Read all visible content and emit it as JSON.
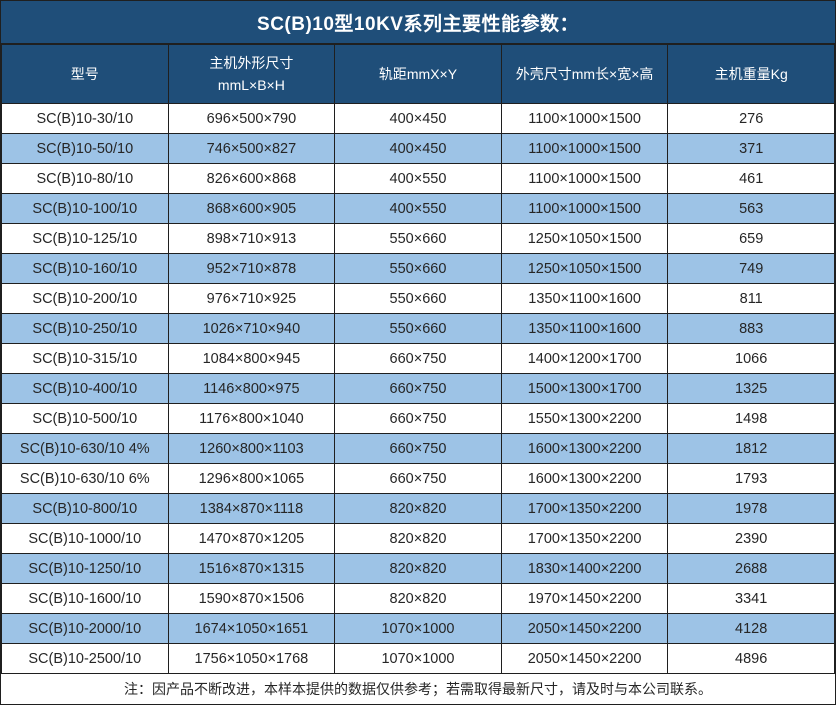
{
  "title": "SC(B)10型10KV系列主要性能参数：",
  "note": "注：因产品不断改进，本样本提供的数据仅供参考；若需取得最新尺寸，请及时与本公司联系。",
  "colors": {
    "header_bg": "#1F4E79",
    "header_text": "#FFFFFF",
    "row_bg": "#FFFFFF",
    "row_alt_bg": "#9DC3E6",
    "border": "#1F1F1F",
    "cell_text": "#262626"
  },
  "table": {
    "columns": [
      {
        "label": "型号"
      },
      {
        "label": "主机外形尺寸\nmmL×B×H"
      },
      {
        "label": "轨距mmX×Y"
      },
      {
        "label": "外壳尺寸mm长×宽×高"
      },
      {
        "label": "主机重量Kg"
      }
    ],
    "rows": [
      [
        "SC(B)10-30/10",
        "696×500×790",
        "400×450",
        "1100×1000×1500",
        "276"
      ],
      [
        "SC(B)10-50/10",
        "746×500×827",
        "400×450",
        "1100×1000×1500",
        "371"
      ],
      [
        "SC(B)10-80/10",
        "826×600×868",
        "400×550",
        "1100×1000×1500",
        "461"
      ],
      [
        "SC(B)10-100/10",
        "868×600×905",
        "400×550",
        "1100×1000×1500",
        "563"
      ],
      [
        "SC(B)10-125/10",
        "898×710×913",
        "550×660",
        "1250×1050×1500",
        "659"
      ],
      [
        "SC(B)10-160/10",
        "952×710×878",
        "550×660",
        "1250×1050×1500",
        "749"
      ],
      [
        "SC(B)10-200/10",
        "976×710×925",
        "550×660",
        "1350×1100×1600",
        "811"
      ],
      [
        "SC(B)10-250/10",
        "1026×710×940",
        "550×660",
        "1350×1100×1600",
        "883"
      ],
      [
        "SC(B)10-315/10",
        "1084×800×945",
        "660×750",
        "1400×1200×1700",
        "1066"
      ],
      [
        "SC(B)10-400/10",
        "1146×800×975",
        "660×750",
        "1500×1300×1700",
        "1325"
      ],
      [
        "SC(B)10-500/10",
        "1176×800×1040",
        "660×750",
        "1550×1300×2200",
        "1498"
      ],
      [
        "SC(B)10-630/10 4%",
        "1260×800×1103",
        "660×750",
        "1600×1300×2200",
        "1812"
      ],
      [
        "SC(B)10-630/10 6%",
        "1296×800×1065",
        "660×750",
        "1600×1300×2200",
        "1793"
      ],
      [
        "SC(B)10-800/10",
        "1384×870×1118",
        "820×820",
        "1700×1350×2200",
        "1978"
      ],
      [
        "SC(B)10-1000/10",
        "1470×870×1205",
        "820×820",
        "1700×1350×2200",
        "2390"
      ],
      [
        "SC(B)10-1250/10",
        "1516×870×1315",
        "820×820",
        "1830×1400×2200",
        "2688"
      ],
      [
        "SC(B)10-1600/10",
        "1590×870×1506",
        "820×820",
        "1970×1450×2200",
        "3341"
      ],
      [
        "SC(B)10-2000/10",
        "1674×1050×1651",
        "1070×1000",
        "2050×1450×2200",
        "4128"
      ],
      [
        "SC(B)10-2500/10",
        "1756×1050×1768",
        "1070×1000",
        "2050×1450×2200",
        "4896"
      ]
    ]
  }
}
